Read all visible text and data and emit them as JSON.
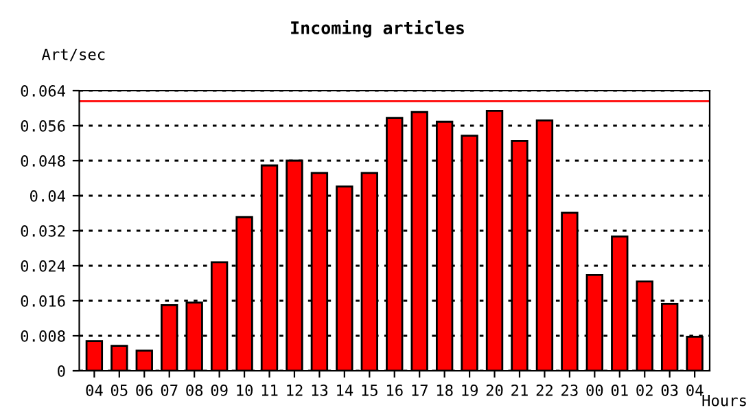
{
  "chart_data": {
    "type": "bar",
    "title": "Incoming articles",
    "ylabel": "Art/sec",
    "xlabel": "Hours",
    "categories": [
      "04",
      "05",
      "06",
      "07",
      "08",
      "09",
      "10",
      "11",
      "12",
      "13",
      "14",
      "15",
      "16",
      "17",
      "18",
      "19",
      "20",
      "21",
      "22",
      "23",
      "00",
      "01",
      "02",
      "03",
      "04"
    ],
    "values": [
      0.0068,
      0.0057,
      0.0046,
      0.015,
      0.0156,
      0.0248,
      0.0351,
      0.0469,
      0.048,
      0.0452,
      0.0421,
      0.0452,
      0.0578,
      0.0591,
      0.0569,
      0.0537,
      0.0594,
      0.0525,
      0.0572,
      0.0361,
      0.0219,
      0.0307,
      0.0204,
      0.0153,
      0.0078
    ],
    "color": "#ff0000",
    "ylim": [
      0,
      0.064
    ],
    "yticks": [
      0,
      0.008,
      0.016,
      0.024,
      0.032,
      0.04,
      0.048,
      0.056,
      0.064
    ],
    "grid": "y",
    "ref_lines": [
      {
        "axis": "y",
        "value": 0.0616,
        "color": "#ff0000",
        "line_style": "solid"
      }
    ]
  }
}
